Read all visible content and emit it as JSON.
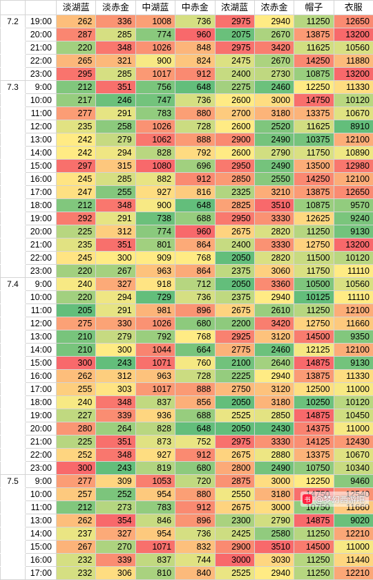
{
  "headers": [
    "",
    "",
    "淡湖蓝",
    "淡赤金",
    "中湖蓝",
    "中赤金",
    "浓湖蓝",
    "浓赤金",
    "帽子",
    "衣服"
  ],
  "groups": [
    {
      "date": "7.2",
      "rows": [
        [
          "19:00",
          262,
          336,
          1008,
          736,
          2975,
          2940,
          11250,
          12650
        ],
        [
          "20:00",
          287,
          285,
          774,
          960,
          2075,
          2670,
          13875,
          13200
        ],
        [
          "21:00",
          220,
          348,
          1026,
          848,
          2975,
          3420,
          11625,
          10560
        ],
        [
          "22:00",
          265,
          321,
          900,
          824,
          2475,
          2670,
          14250,
          11880
        ],
        [
          "23:00",
          295,
          285,
          1017,
          912,
          2400,
          2730,
          10875,
          13200
        ]
      ]
    },
    {
      "date": "7.3",
      "rows": [
        [
          "9:00",
          212,
          351,
          756,
          648,
          2275,
          2460,
          12250,
          11330
        ],
        [
          "10:00",
          217,
          246,
          747,
          736,
          2600,
          3000,
          14750,
          10120
        ],
        [
          "11:00",
          277,
          291,
          783,
          880,
          2700,
          3180,
          13375,
          10670
        ],
        [
          "12:00",
          235,
          258,
          1026,
          728,
          2600,
          2520,
          11625,
          8910
        ],
        [
          "13:00",
          242,
          279,
          1062,
          888,
          2900,
          2490,
          10375,
          12100
        ],
        [
          "14:00",
          242,
          294,
          828,
          792,
          2600,
          2790,
          11750,
          10890
        ],
        [
          "15:00",
          297,
          315,
          1080,
          696,
          2950,
          2490,
          13500,
          12980
        ],
        [
          "16:00",
          245,
          285,
          882,
          912,
          2850,
          2550,
          14250,
          12100
        ],
        [
          "17:00",
          247,
          255,
          927,
          816,
          2325,
          3210,
          13875,
          12650
        ],
        [
          "18:00",
          212,
          348,
          900,
          648,
          2825,
          3510,
          10875,
          9570
        ],
        [
          "19:00",
          292,
          291,
          738,
          688,
          2950,
          3330,
          12625,
          9240
        ],
        [
          "20:00",
          225,
          312,
          774,
          960,
          2675,
          2820,
          11250,
          9130
        ],
        [
          "21:00",
          235,
          351,
          801,
          864,
          2400,
          3330,
          12750,
          13200
        ],
        [
          "22:00",
          245,
          300,
          909,
          768,
          2050,
          2820,
          11500,
          10120
        ],
        [
          "23:00",
          220,
          267,
          963,
          864,
          2375,
          3060,
          11750,
          11110
        ]
      ]
    },
    {
      "date": "7.4",
      "rows": [
        [
          "9:00",
          240,
          327,
          918,
          712,
          2050,
          3360,
          10500,
          10560
        ],
        [
          "10:00",
          220,
          294,
          729,
          736,
          2375,
          2940,
          10125,
          11110
        ],
        [
          "11:00",
          205,
          291,
          981,
          896,
          2675,
          2610,
          11250,
          12100
        ],
        [
          "12:00",
          275,
          330,
          1026,
          680,
          2200,
          3420,
          12750,
          11660
        ],
        [
          "13:00",
          210,
          279,
          792,
          768,
          2925,
          3120,
          14500,
          9350
        ],
        [
          "14:00",
          210,
          300,
          1044,
          664,
          2775,
          2460,
          12125,
          12100
        ],
        [
          "15:00",
          300,
          243,
          1071,
          760,
          2100,
          2640,
          14875,
          9130
        ],
        [
          "16:00",
          262,
          312,
          963,
          728,
          2225,
          2940,
          13875,
          11330
        ],
        [
          "17:00",
          255,
          303,
          1017,
          888,
          2750,
          3120,
          12500,
          11000
        ],
        [
          "18:00",
          240,
          348,
          837,
          856,
          2050,
          3180,
          10250,
          10120
        ],
        [
          "19:00",
          227,
          339,
          936,
          688,
          2525,
          2850,
          14875,
          10450
        ],
        [
          "20:00",
          280,
          264,
          828,
          648,
          2050,
          2430,
          14375,
          11000
        ],
        [
          "21:00",
          225,
          351,
          873,
          752,
          2975,
          3330,
          14125,
          12430
        ],
        [
          "22:00",
          252,
          348,
          927,
          912,
          2675,
          2880,
          13375,
          10670
        ],
        [
          "23:00",
          300,
          243,
          819,
          680,
          2800,
          2490,
          10750,
          10340
        ]
      ]
    },
    {
      "date": "7.5",
      "rows": [
        [
          "9:00",
          277,
          309,
          1053,
          720,
          2875,
          3000,
          12250,
          9460
        ],
        [
          "10:00",
          257,
          252,
          954,
          880,
          2550,
          3180,
          14750,
          12540
        ],
        [
          "11:00",
          212,
          273,
          783,
          912,
          2675,
          3000,
          10750,
          11660
        ],
        [
          "13:00",
          262,
          354,
          846,
          896,
          2300,
          2790,
          14875,
          9020
        ],
        [
          "14:00",
          237,
          327,
          954,
          736,
          2425,
          2580,
          11250,
          12210
        ],
        [
          "15:00",
          267,
          270,
          1071,
          832,
          2900,
          3510,
          14500,
          11000
        ],
        [
          "16:00",
          232,
          339,
          837,
          744,
          3000,
          3030,
          11250,
          11440
        ],
        [
          "17:00",
          232,
          306,
          810,
          840,
          2525,
          2940,
          11250,
          12210
        ]
      ]
    }
  ],
  "color_scale": {
    "low": "#63be7b",
    "mid": "#ffeb84",
    "high": "#f8696b"
  },
  "watermark": {
    "icon": "xiaohongshu-logo",
    "logo_text": "小红书",
    "text": "@梦幻西游吧"
  }
}
